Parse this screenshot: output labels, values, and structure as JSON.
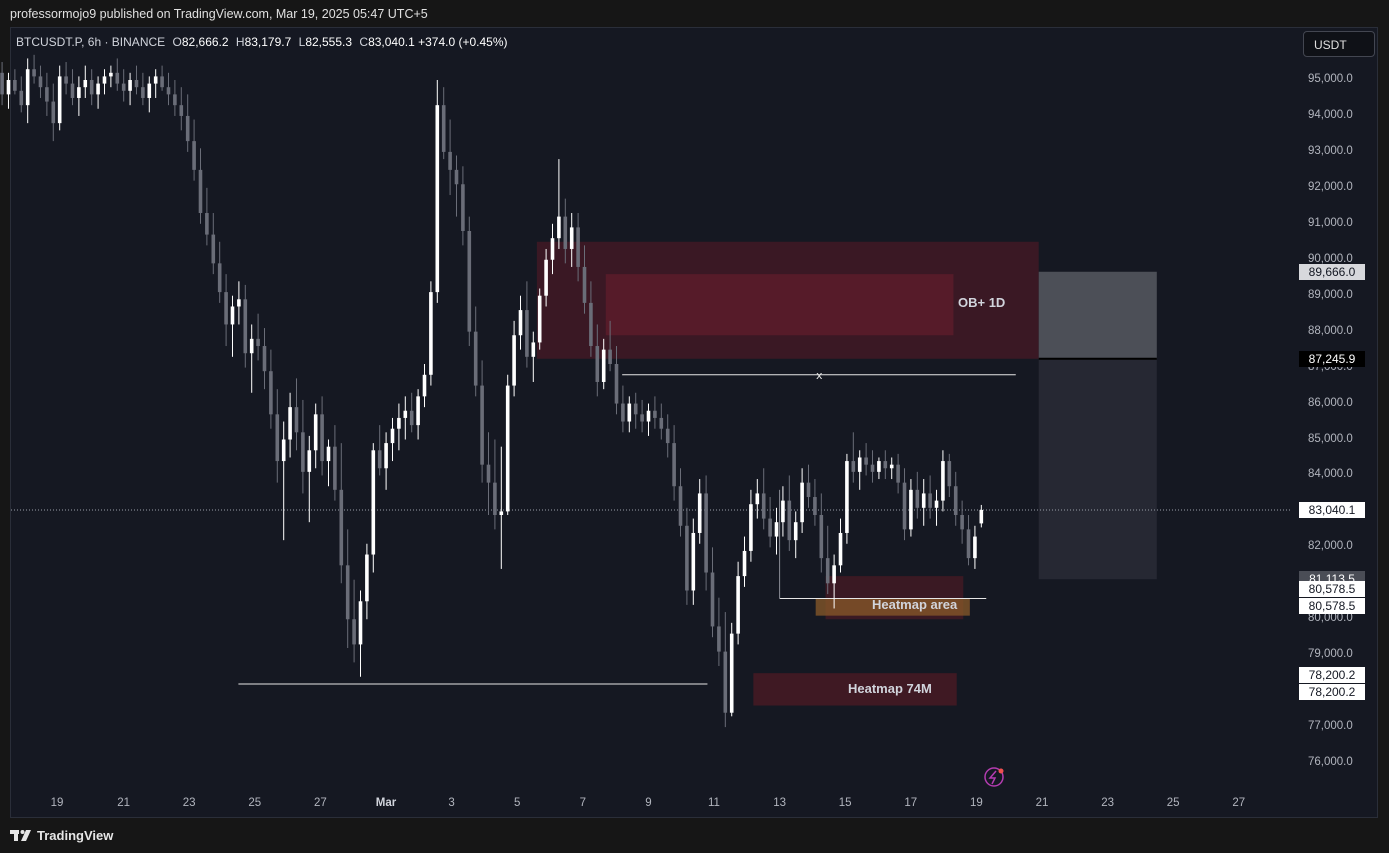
{
  "header": {
    "published_by": "professormojo9 published on TradingView.com, Mar 19, 2025 05:47 UTC+5"
  },
  "legend": {
    "symbol": "BTCUSDT.P, 6h · BINANCE",
    "open_label": "O",
    "open": "82,666.2",
    "high_label": "H",
    "high": "83,179.7",
    "low_label": "L",
    "low": "82,555.3",
    "close_label": "C",
    "close": "83,040.1",
    "change": "+374.0 (+0.45%)"
  },
  "currency_button": "USDT",
  "footer": {
    "brand": "TradingView"
  },
  "colors": {
    "background": "#151822",
    "candle_up": "#ffffff",
    "candle_down": "#6a6d78",
    "ob_zone": "#5a1a26",
    "heatmap_zone": "#4a1a24",
    "heatmap_core": "#8a5a2a",
    "target_box": "#4c4f57"
  },
  "chart_data": {
    "type": "candlestick",
    "symbol": "BTCUSDT.P",
    "interval": "6h",
    "exchange": "BINANCE",
    "ylim": [
      75600,
      96500
    ],
    "y_ticks": [
      "76,000.0",
      "77,000.0",
      "78,000.0",
      "79,000.0",
      "80,000.0",
      "81,000.0",
      "82,000.0",
      "83,000.0",
      "84,000.0",
      "85,000.0",
      "86,000.0",
      "87,000.0",
      "88,000.0",
      "89,000.0",
      "90,000.0",
      "91,000.0",
      "92,000.0",
      "93,000.0",
      "94,000.0",
      "95,000.0"
    ],
    "y_tick_values": [
      76000,
      77000,
      78000,
      79000,
      80000,
      81000,
      82000,
      83000,
      84000,
      85000,
      86000,
      87000,
      88000,
      89000,
      90000,
      91000,
      92000,
      93000,
      94000,
      95000
    ],
    "x_ticks": [
      "19",
      "21",
      "23",
      "25",
      "27",
      "Mar",
      "3",
      "5",
      "7",
      "9",
      "11",
      "13",
      "15",
      "17",
      "19",
      "21",
      "23",
      "25",
      "27"
    ],
    "x_tick_days": [
      -10,
      -8,
      -6,
      -4,
      -2,
      0,
      2,
      4,
      6,
      8,
      10,
      12,
      14,
      16,
      18,
      20,
      22,
      24,
      26
    ],
    "day_zero": "Mar 1",
    "candles_ohlc": [
      [
        95400,
        95800,
        94800,
        95200
      ],
      [
        95200,
        95500,
        94300,
        94600
      ],
      [
        94600,
        95200,
        94200,
        95000
      ],
      [
        95000,
        95300,
        94600,
        94700
      ],
      [
        94700,
        95100,
        94100,
        94300
      ],
      [
        94300,
        95600,
        93800,
        95300
      ],
      [
        95300,
        95700,
        94900,
        95100
      ],
      [
        95100,
        95400,
        94500,
        94800
      ],
      [
        94800,
        95200,
        94000,
        94400
      ],
      [
        94400,
        94900,
        93300,
        93800
      ],
      [
        93800,
        95400,
        93600,
        95100
      ],
      [
        95100,
        95500,
        94600,
        94900
      ],
      [
        94900,
        95300,
        94300,
        94500
      ],
      [
        94500,
        95100,
        94000,
        94800
      ],
      [
        94800,
        95400,
        94500,
        95000
      ],
      [
        95000,
        95300,
        94300,
        94600
      ],
      [
        94600,
        95100,
        94200,
        94900
      ],
      [
        94900,
        95300,
        94600,
        95100
      ],
      [
        95100,
        95400,
        94800,
        95200
      ],
      [
        95200,
        95600,
        94700,
        94900
      ],
      [
        94900,
        95300,
        94400,
        94700
      ],
      [
        94700,
        95200,
        94300,
        95000
      ],
      [
        95000,
        95400,
        94600,
        94800
      ],
      [
        94800,
        95200,
        94300,
        94500
      ],
      [
        94500,
        95100,
        94100,
        94900
      ],
      [
        94900,
        95300,
        94500,
        95100
      ],
      [
        95100,
        95400,
        94700,
        94800
      ],
      [
        94800,
        95200,
        94300,
        94600
      ],
      [
        94600,
        95000,
        94000,
        94300
      ],
      [
        94300,
        94800,
        93600,
        94000
      ],
      [
        94000,
        94600,
        93000,
        93300
      ],
      [
        93300,
        93900,
        92200,
        92500
      ],
      [
        92500,
        93100,
        91000,
        91300
      ],
      [
        91300,
        92000,
        90400,
        90700
      ],
      [
        90700,
        91300,
        89600,
        89900
      ],
      [
        89900,
        90500,
        88800,
        89100
      ],
      [
        89100,
        89600,
        87600,
        88200
      ],
      [
        88200,
        89000,
        87300,
        88700
      ],
      [
        88700,
        89400,
        88200,
        88900
      ],
      [
        88900,
        89300,
        87000,
        87400
      ],
      [
        87400,
        88200,
        86300,
        87800
      ],
      [
        87800,
        88500,
        87200,
        87600
      ],
      [
        87600,
        88100,
        86400,
        86900
      ],
      [
        86900,
        87500,
        85300,
        85700
      ],
      [
        85700,
        86400,
        83800,
        84400
      ],
      [
        84400,
        85500,
        82200,
        85000
      ],
      [
        85000,
        86300,
        84500,
        85900
      ],
      [
        85900,
        86700,
        84700,
        85200
      ],
      [
        85200,
        86100,
        83500,
        84100
      ],
      [
        84100,
        85100,
        82700,
        84700
      ],
      [
        84700,
        86000,
        84200,
        85700
      ],
      [
        85700,
        86200,
        84000,
        84400
      ],
      [
        84400,
        85000,
        83700,
        84800
      ],
      [
        84800,
        85400,
        83300,
        83600
      ],
      [
        83600,
        84900,
        81000,
        81500
      ],
      [
        81500,
        82500,
        79200,
        80000
      ],
      [
        80000,
        81100,
        78800,
        79300
      ],
      [
        79300,
        80800,
        78400,
        80500
      ],
      [
        80500,
        82100,
        80000,
        81800
      ],
      [
        81800,
        84900,
        81300,
        84700
      ],
      [
        84700,
        85400,
        84000,
        84200
      ],
      [
        84200,
        85200,
        83600,
        84900
      ],
      [
        84900,
        85600,
        84400,
        85300
      ],
      [
        85300,
        86000,
        84700,
        85600
      ],
      [
        85600,
        86200,
        85000,
        85800
      ],
      [
        85800,
        86300,
        85200,
        85400
      ],
      [
        85400,
        86400,
        85000,
        86200
      ],
      [
        86200,
        87100,
        85900,
        86800
      ],
      [
        86800,
        89400,
        86500,
        89100
      ],
      [
        89100,
        95000,
        88800,
        94300
      ],
      [
        94300,
        94800,
        92800,
        93000
      ],
      [
        93000,
        93900,
        91800,
        92500
      ],
      [
        92500,
        92900,
        91200,
        92100
      ],
      [
        92100,
        92600,
        90400,
        90800
      ],
      [
        90800,
        91200,
        87600,
        88000
      ],
      [
        88000,
        88700,
        86200,
        86500
      ],
      [
        86500,
        87200,
        83800,
        84300
      ],
      [
        84300,
        85200,
        82900,
        83800
      ],
      [
        83800,
        85000,
        82500,
        82900
      ],
      [
        82900,
        84800,
        81400,
        83000
      ],
      [
        83000,
        86800,
        82900,
        86500
      ],
      [
        86500,
        88300,
        86200,
        87900
      ],
      [
        87900,
        89000,
        87500,
        88600
      ],
      [
        88600,
        89400,
        87000,
        87300
      ],
      [
        87300,
        88000,
        86600,
        87700
      ],
      [
        87700,
        89200,
        87500,
        89000
      ],
      [
        89000,
        90300,
        88700,
        90000
      ],
      [
        90000,
        91000,
        89600,
        90600
      ],
      [
        90600,
        92800,
        90300,
        91200
      ],
      [
        91200,
        91700,
        89900,
        90300
      ],
      [
        90300,
        91300,
        89800,
        90900
      ],
      [
        90900,
        91300,
        89400,
        89800
      ],
      [
        89800,
        90400,
        88500,
        88800
      ],
      [
        88800,
        89400,
        87300,
        87600
      ],
      [
        87600,
        88200,
        86200,
        86600
      ],
      [
        86600,
        87800,
        86400,
        87500
      ],
      [
        87500,
        88300,
        86900,
        87100
      ],
      [
        87100,
        87600,
        85700,
        86000
      ],
      [
        86000,
        86500,
        85200,
        85500
      ],
      [
        85500,
        86200,
        85200,
        86000
      ],
      [
        86000,
        86300,
        85300,
        85700
      ],
      [
        85700,
        86100,
        85200,
        85500
      ],
      [
        85500,
        86000,
        85100,
        85800
      ],
      [
        85800,
        86200,
        85300,
        85600
      ],
      [
        85600,
        86000,
        85000,
        85300
      ],
      [
        85300,
        85700,
        84500,
        84900
      ],
      [
        84900,
        85400,
        83300,
        83700
      ],
      [
        83700,
        84200,
        82300,
        82600
      ],
      [
        82600,
        83100,
        80400,
        80800
      ],
      [
        80800,
        82800,
        80400,
        82400
      ],
      [
        82400,
        83900,
        82100,
        83500
      ],
      [
        83500,
        84000,
        80800,
        81300
      ],
      [
        81300,
        82000,
        79500,
        79800
      ],
      [
        79800,
        80600,
        78700,
        79100
      ],
      [
        79100,
        80200,
        77000,
        77400
      ],
      [
        77400,
        79900,
        77300,
        79600
      ],
      [
        79600,
        81600,
        79300,
        81200
      ],
      [
        81200,
        82300,
        80900,
        81900
      ],
      [
        81900,
        83600,
        81600,
        83200
      ],
      [
        83200,
        83900,
        82800,
        83500
      ],
      [
        83500,
        84200,
        82500,
        82800
      ],
      [
        82800,
        83400,
        82000,
        82300
      ],
      [
        82300,
        83100,
        81800,
        82700
      ],
      [
        82700,
        83700,
        82300,
        83300
      ],
      [
        83300,
        84000,
        81900,
        82200
      ],
      [
        82200,
        83000,
        81700,
        82700
      ],
      [
        82700,
        84200,
        82400,
        83800
      ],
      [
        83800,
        84300,
        83100,
        83400
      ],
      [
        83400,
        83900,
        82600,
        82900
      ],
      [
        82900,
        83500,
        81300,
        81700
      ],
      [
        81700,
        82600,
        80700,
        81000
      ],
      [
        81000,
        81800,
        80300,
        81500
      ],
      [
        81500,
        82800,
        81300,
        82400
      ],
      [
        82400,
        84600,
        82100,
        84400
      ],
      [
        84400,
        85200,
        83800,
        84100
      ],
      [
        84100,
        84700,
        83600,
        84500
      ],
      [
        84500,
        84900,
        84000,
        84300
      ],
      [
        84300,
        84700,
        83800,
        84100
      ],
      [
        84100,
        84500,
        83900,
        84400
      ],
      [
        84400,
        84700,
        83900,
        84200
      ],
      [
        84200,
        84500,
        83900,
        84300
      ],
      [
        84300,
        84600,
        83500,
        83800
      ],
      [
        83800,
        84200,
        82200,
        82500
      ],
      [
        82500,
        83900,
        82300,
        83600
      ],
      [
        83600,
        84100,
        82800,
        83100
      ],
      [
        83100,
        83900,
        82600,
        83500
      ],
      [
        83500,
        84000,
        82800,
        83100
      ],
      [
        83100,
        83600,
        82600,
        83300
      ],
      [
        83300,
        84700,
        83000,
        84400
      ],
      [
        84400,
        84600,
        83400,
        83700
      ],
      [
        83700,
        84100,
        82600,
        82900
      ],
      [
        82900,
        83300,
        82100,
        82500
      ],
      [
        82500,
        82900,
        81500,
        81700
      ],
      [
        81700,
        82600,
        81400,
        82300
      ],
      [
        82666.2,
        83179.7,
        82555.3,
        83040.1
      ]
    ],
    "last_price": "83,040.1",
    "zones": [
      {
        "label": "OB+ 1D",
        "from": 87245.9,
        "to": 90500
      },
      {
        "label": "Heatmap area",
        "from": 80578.5,
        "to": 81113.5
      },
      {
        "label": "Heatmap 74M",
        "from": 77600,
        "to": 78500
      }
    ],
    "horizontal_levels": [
      {
        "value": 86800,
        "marker": "x"
      },
      {
        "value": 78200.2
      },
      {
        "value": 80578.5
      }
    ],
    "target_box": {
      "upper": 89666.0,
      "mid": 87245.9,
      "lower": 81113.5
    },
    "price_tags": [
      {
        "text": "89,666.0",
        "value": 89666.0,
        "style": "light"
      },
      {
        "text": "87,245.9",
        "value": 87245.9,
        "style": "dark"
      },
      {
        "text": "83,040.1",
        "value": 83040.1,
        "style": "light"
      },
      {
        "text": "81,113.5",
        "value": 81113.5,
        "style": "grey"
      },
      {
        "text": "80,578.5",
        "value": 80578.5,
        "style": "light"
      },
      {
        "text": "80,578.5",
        "value": 80578.5,
        "style": "light"
      },
      {
        "text": "78,200.2",
        "value": 78200.2,
        "style": "light"
      },
      {
        "text": "78,200.2",
        "value": 78200.2,
        "style": "light"
      }
    ]
  }
}
